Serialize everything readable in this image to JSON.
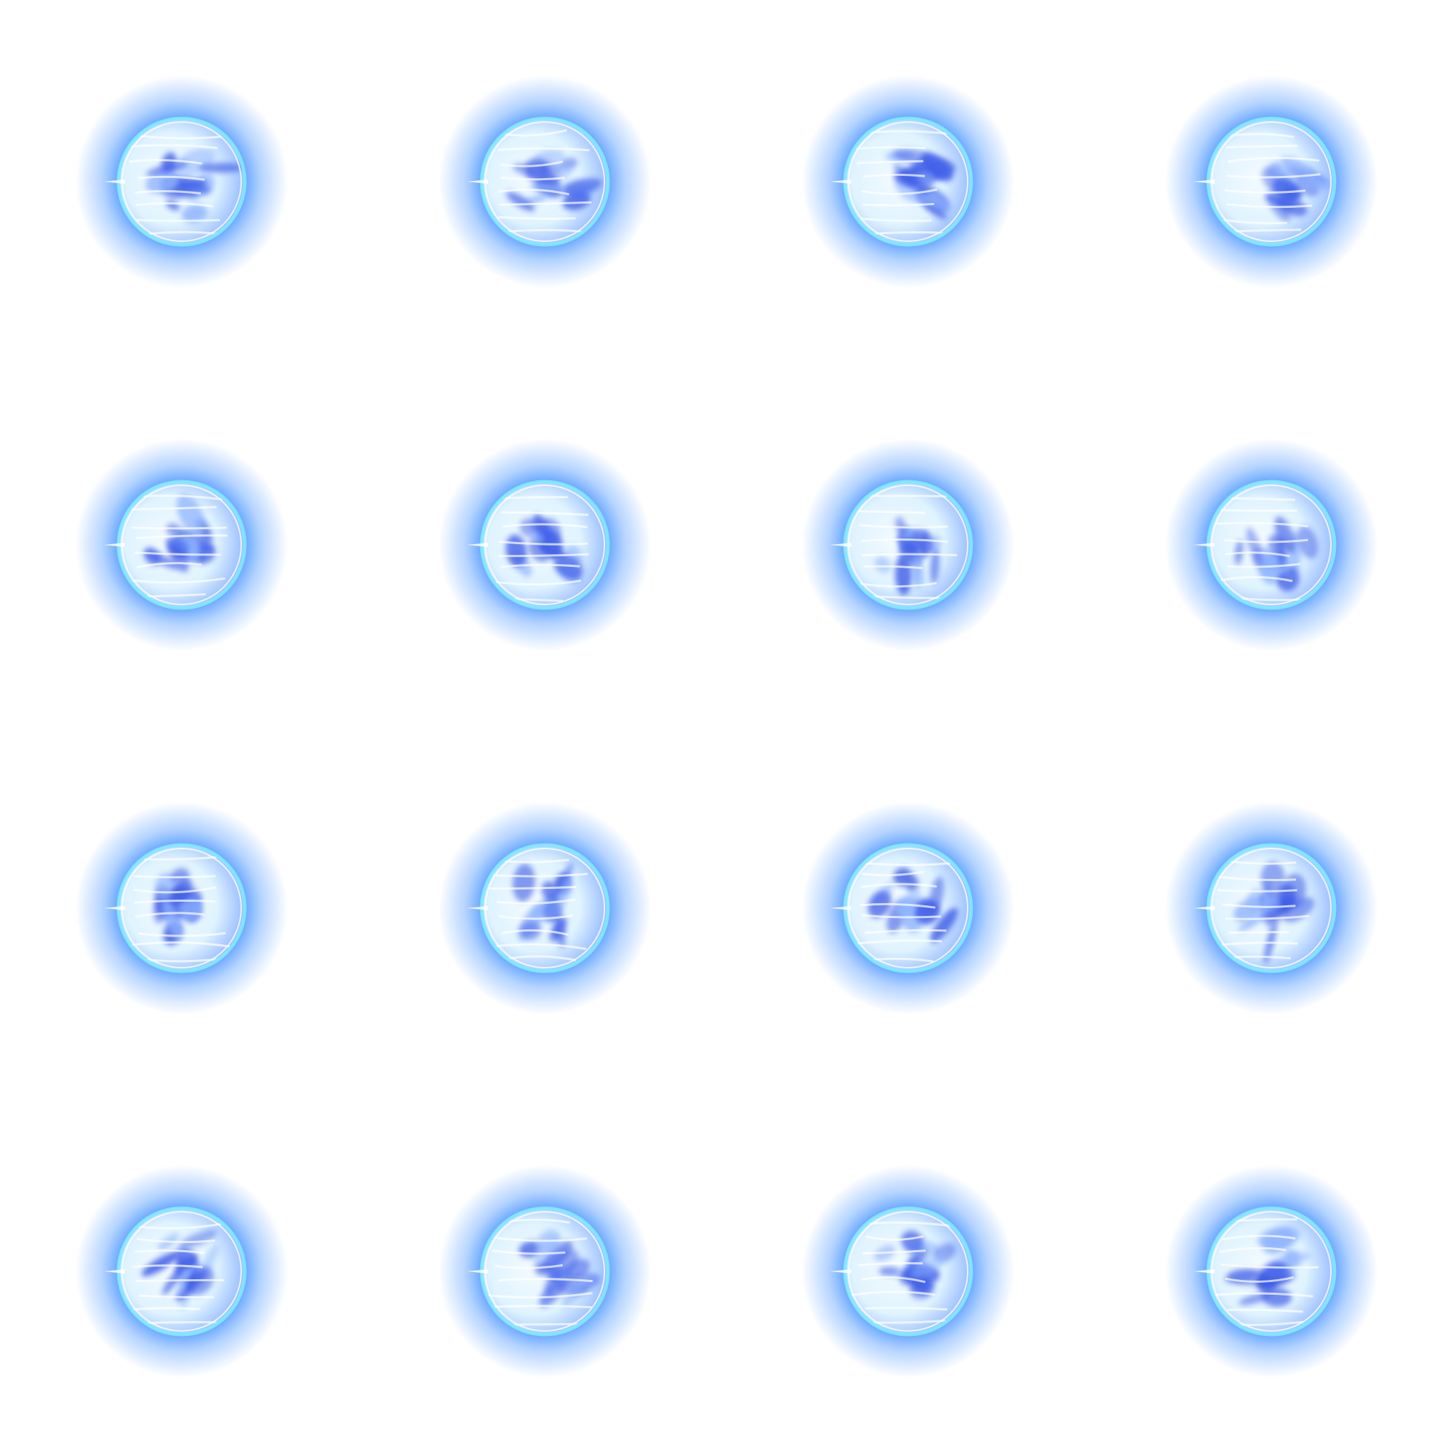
{
  "sprite_sheet": {
    "rows": 4,
    "columns": 4,
    "frame_count": 16,
    "background_color": "#ffffff",
    "colors": {
      "glow_outer": "#5aa0ff",
      "glow_mid": "#3c8cff",
      "rim_cyan": "#7fe8ff",
      "core_white": "#f4fbff",
      "swirl_blue": "#3f5fe8",
      "swirl_light": "#8fb4ff"
    },
    "frames": [
      {
        "index": 0,
        "swirl_phase": 0
      },
      {
        "index": 1,
        "swirl_phase": 1
      },
      {
        "index": 2,
        "swirl_phase": 2
      },
      {
        "index": 3,
        "swirl_phase": 3
      },
      {
        "index": 4,
        "swirl_phase": 4
      },
      {
        "index": 5,
        "swirl_phase": 5
      },
      {
        "index": 6,
        "swirl_phase": 6
      },
      {
        "index": 7,
        "swirl_phase": 7
      },
      {
        "index": 8,
        "swirl_phase": 8
      },
      {
        "index": 9,
        "swirl_phase": 9
      },
      {
        "index": 10,
        "swirl_phase": 10
      },
      {
        "index": 11,
        "swirl_phase": 11
      },
      {
        "index": 12,
        "swirl_phase": 12
      },
      {
        "index": 13,
        "swirl_phase": 13
      },
      {
        "index": 14,
        "swirl_phase": 14
      },
      {
        "index": 15,
        "swirl_phase": 15
      }
    ]
  }
}
